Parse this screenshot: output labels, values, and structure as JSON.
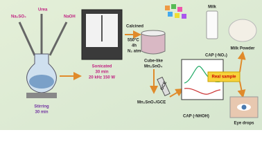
{
  "reagents": [
    "Na₂SO₄",
    "Urea",
    "NaOH"
  ],
  "steps": {
    "stirring": [
      "Stirring",
      "30 min"
    ],
    "sonication": [
      "Sonicated",
      "30 min",
      "20 kHz 150 W"
    ],
    "calcination": [
      "Calcined",
      "550°C",
      "4h",
      "N₂ atm"
    ]
  },
  "product": [
    "Cube-like",
    "Mn₂SnO₄"
  ],
  "electrode": {
    "label": "GCE",
    "modified": "Mn₂SnO₄/GCE"
  },
  "analytes": {
    "top": "CAP (-NO₂)",
    "bottom": "CAP (-NHOH)"
  },
  "real_sample": "Real sample",
  "samples": {
    "milk": "Milk",
    "milk_powder": "Milk Powder",
    "eye_drops": "Eye drops"
  }
}
